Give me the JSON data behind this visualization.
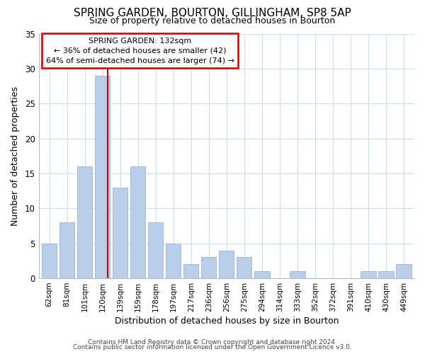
{
  "title": "SPRING GARDEN, BOURTON, GILLINGHAM, SP8 5AP",
  "subtitle": "Size of property relative to detached houses in Bourton",
  "xlabel": "Distribution of detached houses by size in Bourton",
  "ylabel": "Number of detached properties",
  "categories": [
    "62sqm",
    "81sqm",
    "101sqm",
    "120sqm",
    "139sqm",
    "159sqm",
    "178sqm",
    "197sqm",
    "217sqm",
    "236sqm",
    "256sqm",
    "275sqm",
    "294sqm",
    "314sqm",
    "333sqm",
    "352sqm",
    "372sqm",
    "391sqm",
    "410sqm",
    "430sqm",
    "449sqm"
  ],
  "values": [
    5,
    8,
    16,
    29,
    13,
    16,
    8,
    5,
    2,
    3,
    4,
    3,
    1,
    0,
    1,
    0,
    0,
    0,
    1,
    1,
    2
  ],
  "bar_color": "#b8ceea",
  "bar_edge_color": "#9ab4d8",
  "marker_line_color": "#cc0000",
  "annotation_box_edge_color": "#cc0000",
  "annotation_box_face_color": "#ffffff",
  "marker_label": "SPRING GARDEN: 132sqm",
  "annotation_line1": "← 36% of detached houses are smaller (42)",
  "annotation_line2": "64% of semi-detached houses are larger (74) →",
  "ylim": [
    0,
    35
  ],
  "yticks": [
    0,
    5,
    10,
    15,
    20,
    25,
    30,
    35
  ],
  "footer1": "Contains HM Land Registry data © Crown copyright and database right 2024.",
  "footer2": "Contains public sector information licensed under the Open Government Licence v3.0.",
  "background_color": "#ffffff",
  "grid_color": "#ccddee",
  "title_fontsize": 11,
  "subtitle_fontsize": 9
}
